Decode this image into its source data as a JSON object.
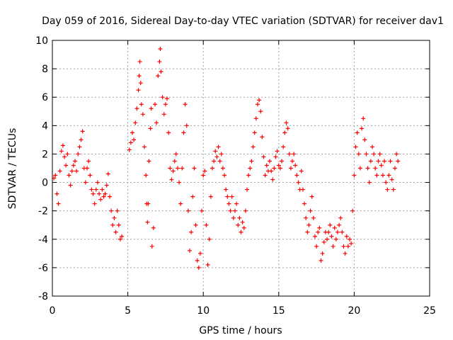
{
  "chart_data": {
    "type": "scatter",
    "title": "Day 059 of 2016, Sidereal Day-to-day VTEC variation (SDTVAR) for receiver dav1",
    "xlabel": "GPS time / hours",
    "ylabel": "SDTVAR / TECUs",
    "xlim": [
      0,
      25
    ],
    "ylim": [
      -8,
      10
    ],
    "xticks": [
      "0",
      "5",
      "10",
      "15",
      "20",
      "25"
    ],
    "yticks": [
      "10",
      "8",
      "6",
      "4",
      "2",
      "0",
      "-2",
      "-4",
      "-6",
      "-8"
    ],
    "grid": true,
    "marker": "plus",
    "series_color": "#ff0000",
    "data_range": [
      0.1,
      22.9
    ],
    "series": [
      {
        "name": "dav1",
        "points": [
          [
            0.1,
            0.3
          ],
          [
            0.2,
            0.5
          ],
          [
            0.3,
            -0.8
          ],
          [
            0.4,
            -1.5
          ],
          [
            0.5,
            0.8
          ],
          [
            0.6,
            2.2
          ],
          [
            0.7,
            2.6
          ],
          [
            0.8,
            1.8
          ],
          [
            0.9,
            1.2
          ],
          [
            1.0,
            2.0
          ],
          [
            1.1,
            0.5
          ],
          [
            1.2,
            -0.2
          ],
          [
            1.3,
            0.8
          ],
          [
            1.4,
            1.2
          ],
          [
            1.5,
            1.5
          ],
          [
            1.6,
            0.8
          ],
          [
            1.7,
            2.0
          ],
          [
            1.8,
            2.5
          ],
          [
            1.9,
            3.0
          ],
          [
            2.0,
            3.6
          ],
          [
            2.1,
            1.0
          ],
          [
            2.2,
            0.0
          ],
          [
            2.3,
            1.0
          ],
          [
            2.4,
            1.5
          ],
          [
            2.5,
            0.5
          ],
          [
            2.6,
            -0.5
          ],
          [
            2.7,
            -0.8
          ],
          [
            2.8,
            -1.5
          ],
          [
            2.9,
            -0.5
          ],
          [
            3.0,
            0.0
          ],
          [
            3.1,
            -0.8
          ],
          [
            3.2,
            -1.2
          ],
          [
            3.3,
            -0.5
          ],
          [
            3.4,
            -1.0
          ],
          [
            3.5,
            -0.8
          ],
          [
            3.6,
            -0.2
          ],
          [
            3.7,
            0.6
          ],
          [
            3.8,
            -1.0
          ],
          [
            3.9,
            -2.0
          ],
          [
            4.0,
            -3.0
          ],
          [
            4.1,
            -2.5
          ],
          [
            4.2,
            -3.5
          ],
          [
            4.3,
            -2.0
          ],
          [
            4.4,
            -3.0
          ],
          [
            4.5,
            -4.0
          ],
          [
            4.6,
            -3.8
          ],
          [
            5.1,
            2.3
          ],
          [
            5.2,
            2.8
          ],
          [
            5.3,
            3.5
          ],
          [
            5.4,
            3.0
          ],
          [
            5.5,
            4.2
          ],
          [
            5.6,
            5.2
          ],
          [
            5.7,
            6.5
          ],
          [
            5.75,
            7.5
          ],
          [
            5.8,
            8.5
          ],
          [
            5.85,
            7.0
          ],
          [
            5.9,
            5.5
          ],
          [
            6.0,
            4.8
          ],
          [
            6.1,
            2.5
          ],
          [
            6.2,
            0.5
          ],
          [
            6.25,
            -1.5
          ],
          [
            6.3,
            -2.8
          ],
          [
            6.35,
            -1.5
          ],
          [
            6.4,
            1.5
          ],
          [
            6.5,
            3.8
          ],
          [
            6.55,
            5.2
          ],
          [
            6.6,
            -4.5
          ],
          [
            6.7,
            -3.2
          ],
          [
            6.8,
            5.5
          ],
          [
            6.9,
            4.2
          ],
          [
            7.0,
            7.5
          ],
          [
            7.1,
            8.5
          ],
          [
            7.15,
            9.4
          ],
          [
            7.2,
            7.8
          ],
          [
            7.3,
            6.0
          ],
          [
            7.4,
            4.8
          ],
          [
            7.5,
            5.5
          ],
          [
            7.6,
            5.9
          ],
          [
            7.7,
            3.5
          ],
          [
            7.8,
            1.0
          ],
          [
            7.9,
            0.2
          ],
          [
            8.0,
            0.8
          ],
          [
            8.1,
            1.5
          ],
          [
            8.2,
            2.0
          ],
          [
            8.3,
            1.0
          ],
          [
            8.4,
            0.0
          ],
          [
            8.5,
            -1.5
          ],
          [
            8.6,
            1.0
          ],
          [
            8.7,
            3.5
          ],
          [
            8.8,
            5.5
          ],
          [
            8.9,
            4.0
          ],
          [
            9.0,
            -2.0
          ],
          [
            9.1,
            -4.8
          ],
          [
            9.2,
            -3.5
          ],
          [
            9.3,
            -1.0
          ],
          [
            9.4,
            1.0
          ],
          [
            9.5,
            -3.0
          ],
          [
            9.6,
            -5.5
          ],
          [
            9.7,
            -6.0
          ],
          [
            9.8,
            -5.0
          ],
          [
            9.9,
            -2.0
          ],
          [
            10.0,
            0.5
          ],
          [
            10.1,
            0.8
          ],
          [
            10.2,
            -3.0
          ],
          [
            10.3,
            -5.8
          ],
          [
            10.4,
            -4.0
          ],
          [
            10.5,
            -1.0
          ],
          [
            10.6,
            1.0
          ],
          [
            10.7,
            1.5
          ],
          [
            10.8,
            2.2
          ],
          [
            10.9,
            1.8
          ],
          [
            11.0,
            2.5
          ],
          [
            11.1,
            1.5
          ],
          [
            11.2,
            2.0
          ],
          [
            11.3,
            1.0
          ],
          [
            11.4,
            0.5
          ],
          [
            11.5,
            -0.5
          ],
          [
            11.6,
            -1.0
          ],
          [
            11.7,
            -1.5
          ],
          [
            11.8,
            -2.0
          ],
          [
            11.9,
            -1.0
          ],
          [
            12.0,
            -2.5
          ],
          [
            12.1,
            -2.0
          ],
          [
            12.2,
            -1.5
          ],
          [
            12.3,
            -3.0
          ],
          [
            12.4,
            -2.5
          ],
          [
            12.5,
            -3.5
          ],
          [
            12.6,
            -2.8
          ],
          [
            12.7,
            -3.2
          ],
          [
            12.8,
            -2.0
          ],
          [
            12.9,
            -0.5
          ],
          [
            13.0,
            0.5
          ],
          [
            13.1,
            1.0
          ],
          [
            13.2,
            1.5
          ],
          [
            13.3,
            2.5
          ],
          [
            13.4,
            3.5
          ],
          [
            13.5,
            4.5
          ],
          [
            13.6,
            5.5
          ],
          [
            13.7,
            5.8
          ],
          [
            13.8,
            5.0
          ],
          [
            13.9,
            3.2
          ],
          [
            14.0,
            1.8
          ],
          [
            14.1,
            0.5
          ],
          [
            14.2,
            1.2
          ],
          [
            14.3,
            0.8
          ],
          [
            14.4,
            1.5
          ],
          [
            14.5,
            0.8
          ],
          [
            14.6,
            0.2
          ],
          [
            14.7,
            1.0
          ],
          [
            14.8,
            1.8
          ],
          [
            14.9,
            2.2
          ],
          [
            15.0,
            1.2
          ],
          [
            15.1,
            1.0
          ],
          [
            15.2,
            1.5
          ],
          [
            15.3,
            2.5
          ],
          [
            15.4,
            3.5
          ],
          [
            15.5,
            4.2
          ],
          [
            15.6,
            3.8
          ],
          [
            15.7,
            2.0
          ],
          [
            15.8,
            1.0
          ],
          [
            15.9,
            1.5
          ],
          [
            16.0,
            2.0
          ],
          [
            16.1,
            1.2
          ],
          [
            16.2,
            0.5
          ],
          [
            16.3,
            0.0
          ],
          [
            16.4,
            -0.5
          ],
          [
            16.5,
            0.8
          ],
          [
            16.6,
            -0.5
          ],
          [
            16.7,
            -1.5
          ],
          [
            16.8,
            -2.5
          ],
          [
            16.9,
            -3.5
          ],
          [
            17.0,
            -3.0
          ],
          [
            17.1,
            -2.0
          ],
          [
            17.2,
            -1.0
          ],
          [
            17.3,
            -2.5
          ],
          [
            17.4,
            -3.8
          ],
          [
            17.5,
            -4.5
          ],
          [
            17.6,
            -3.5
          ],
          [
            17.7,
            -3.2
          ],
          [
            17.8,
            -5.5
          ],
          [
            17.9,
            -5.0
          ],
          [
            18.0,
            -4.2
          ],
          [
            18.1,
            -3.5
          ],
          [
            18.2,
            -4.0
          ],
          [
            18.3,
            -3.5
          ],
          [
            18.4,
            -3.0
          ],
          [
            18.5,
            -3.8
          ],
          [
            18.6,
            -4.5
          ],
          [
            18.7,
            -3.2
          ],
          [
            18.8,
            -4.0
          ],
          [
            18.9,
            -3.5
          ],
          [
            19.0,
            -3.0
          ],
          [
            19.1,
            -2.5
          ],
          [
            19.2,
            -3.5
          ],
          [
            19.3,
            -4.5
          ],
          [
            19.4,
            -5.0
          ],
          [
            19.5,
            -3.8
          ],
          [
            19.6,
            -4.5
          ],
          [
            19.7,
            -4.0
          ],
          [
            19.8,
            -4.3
          ],
          [
            19.9,
            -2.0
          ],
          [
            20.0,
            0.5
          ],
          [
            20.1,
            2.5
          ],
          [
            20.2,
            3.5
          ],
          [
            20.3,
            2.0
          ],
          [
            20.4,
            1.0
          ],
          [
            20.5,
            3.8
          ],
          [
            20.6,
            4.5
          ],
          [
            20.7,
            3.0
          ],
          [
            20.8,
            2.0
          ],
          [
            20.9,
            1.0
          ],
          [
            21.0,
            0.0
          ],
          [
            21.1,
            1.5
          ],
          [
            21.2,
            2.5
          ],
          [
            21.3,
            2.0
          ],
          [
            21.4,
            1.0
          ],
          [
            21.5,
            0.5
          ],
          [
            21.6,
            1.5
          ],
          [
            21.7,
            2.0
          ],
          [
            21.8,
            1.2
          ],
          [
            21.9,
            0.5
          ],
          [
            22.0,
            1.5
          ],
          [
            22.1,
            0.0
          ],
          [
            22.2,
            -0.5
          ],
          [
            22.3,
            0.5
          ],
          [
            22.4,
            1.5
          ],
          [
            22.5,
            0.2
          ],
          [
            22.6,
            -0.5
          ],
          [
            22.7,
            1.0
          ],
          [
            22.8,
            2.0
          ],
          [
            22.9,
            1.5
          ]
        ]
      }
    ]
  }
}
